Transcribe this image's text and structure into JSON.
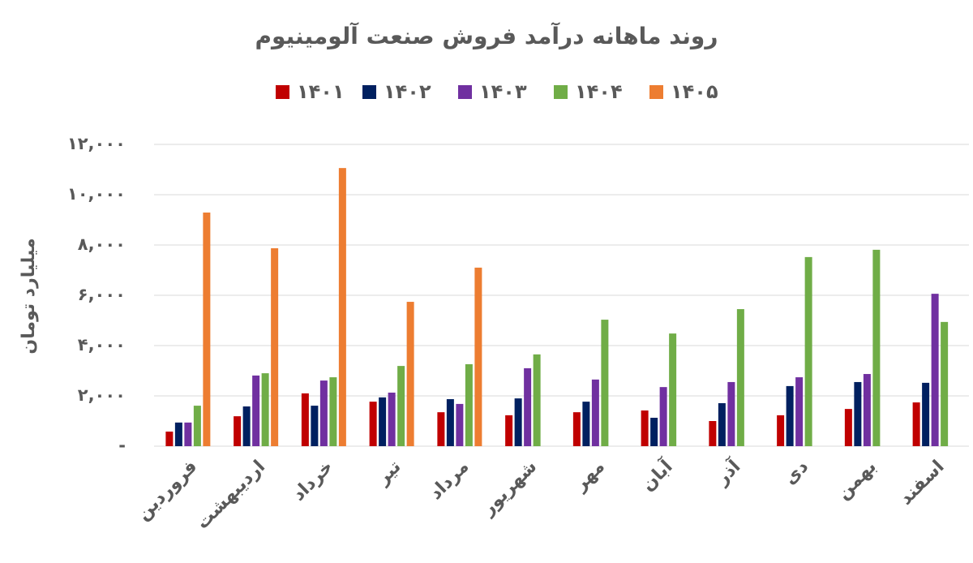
{
  "chart_data": {
    "type": "bar",
    "title": "روند ماهانه درآمد فروش صنعت آلومینیوم",
    "y_label": "میلیارد تومان",
    "categories": [
      "فروردین",
      "اردیبهشت",
      "خرداد",
      "تیر",
      "مرداد",
      "شهریور",
      "مهر",
      "آبان",
      "آذر",
      "دی",
      "بهمن",
      "اسفند"
    ],
    "series": [
      {
        "name": "۱۴۰۱",
        "color": "#c00000",
        "values": [
          580,
          1190,
          2100,
          1770,
          1350,
          1230,
          1350,
          1420,
          1000,
          1230,
          1480,
          1740
        ]
      },
      {
        "name": "۱۴۰۲",
        "color": "#002060",
        "values": [
          940,
          1580,
          1610,
          1940,
          1870,
          1900,
          1770,
          1130,
          1710,
          2390,
          2550,
          2520
        ]
      },
      {
        "name": "۱۴۰۳",
        "color": "#7030a0",
        "values": [
          940,
          2810,
          2610,
          2130,
          1680,
          3100,
          2650,
          2350,
          2550,
          2740,
          2870,
          6060
        ]
      },
      {
        "name": "۱۴۰۴",
        "color": "#70ad47",
        "values": [
          1610,
          2900,
          2740,
          3190,
          3260,
          3650,
          5030,
          4480,
          5450,
          7520,
          7810,
          4940
        ]
      },
      {
        "name": "۱۴۰۵",
        "color": "#ed7d31",
        "values": [
          9290,
          7870,
          11060,
          5740,
          7100,
          null,
          null,
          null,
          null,
          null,
          null,
          null
        ]
      }
    ],
    "ylim": [
      0,
      12000
    ],
    "yticks": [
      {
        "value": 0,
        "label": "-"
      },
      {
        "value": 2000,
        "label": "۲,۰۰۰"
      },
      {
        "value": 4000,
        "label": "۴,۰۰۰"
      },
      {
        "value": 6000,
        "label": "۶,۰۰۰"
      },
      {
        "value": 8000,
        "label": "۸,۰۰۰"
      },
      {
        "value": 10000,
        "label": "۱۰,۰۰۰"
      },
      {
        "value": 12000,
        "label": "۱۲,۰۰۰"
      }
    ],
    "grid": true
  }
}
